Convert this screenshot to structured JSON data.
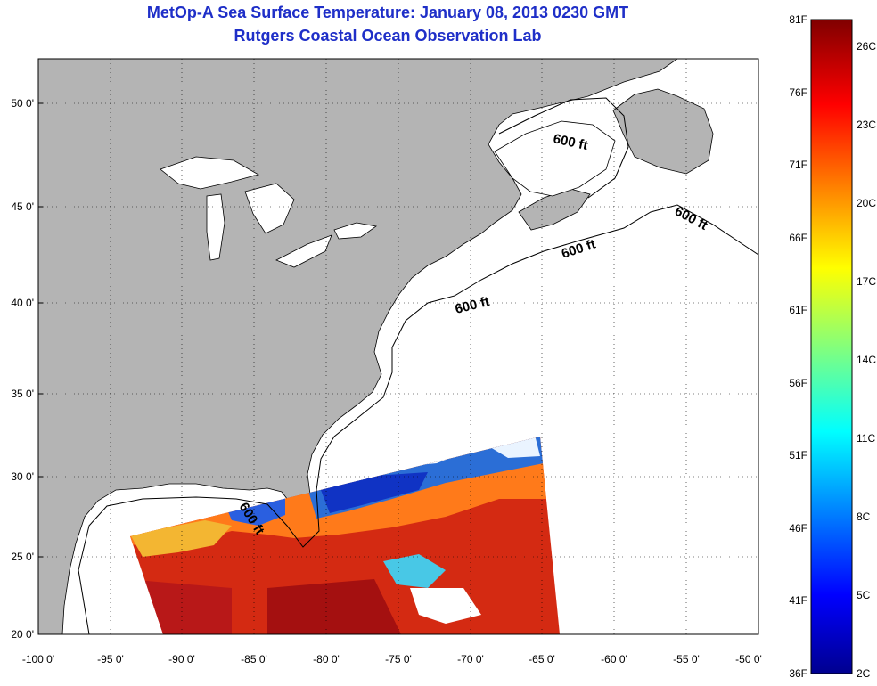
{
  "title": "MetOp-A Sea Surface Temperature:  January 08, 2013 0230 GMT",
  "subtitle": "Rutgers Coastal Ocean Observation Lab",
  "map": {
    "lon_range": [
      -100,
      -50
    ],
    "lat_range": [
      20,
      52
    ],
    "lon_ticks": [
      "-100 0'",
      "-95 0'",
      "-90 0'",
      "-85 0'",
      "-80 0'",
      "-75 0'",
      "-70 0'",
      "-65 0'",
      "-60 0'",
      "-55 0'",
      "-50 0'"
    ],
    "lat_ticks": [
      "20 0'",
      "25 0'",
      "30 0'",
      "35 0'",
      "40 0'",
      "45 0'",
      "50 0'"
    ],
    "grid": "dotted",
    "land_color": "#b4b4b4",
    "contour_label": "600 ft"
  },
  "colorbar": {
    "left_labels": [
      "36F",
      "41F",
      "46F",
      "51F",
      "56F",
      "61F",
      "66F",
      "71F",
      "76F",
      "81F"
    ],
    "right_labels": [
      "2C",
      "5C",
      "8C",
      "11C",
      "14C",
      "17C",
      "20C",
      "23C",
      "26C"
    ],
    "colormap": "jet"
  }
}
